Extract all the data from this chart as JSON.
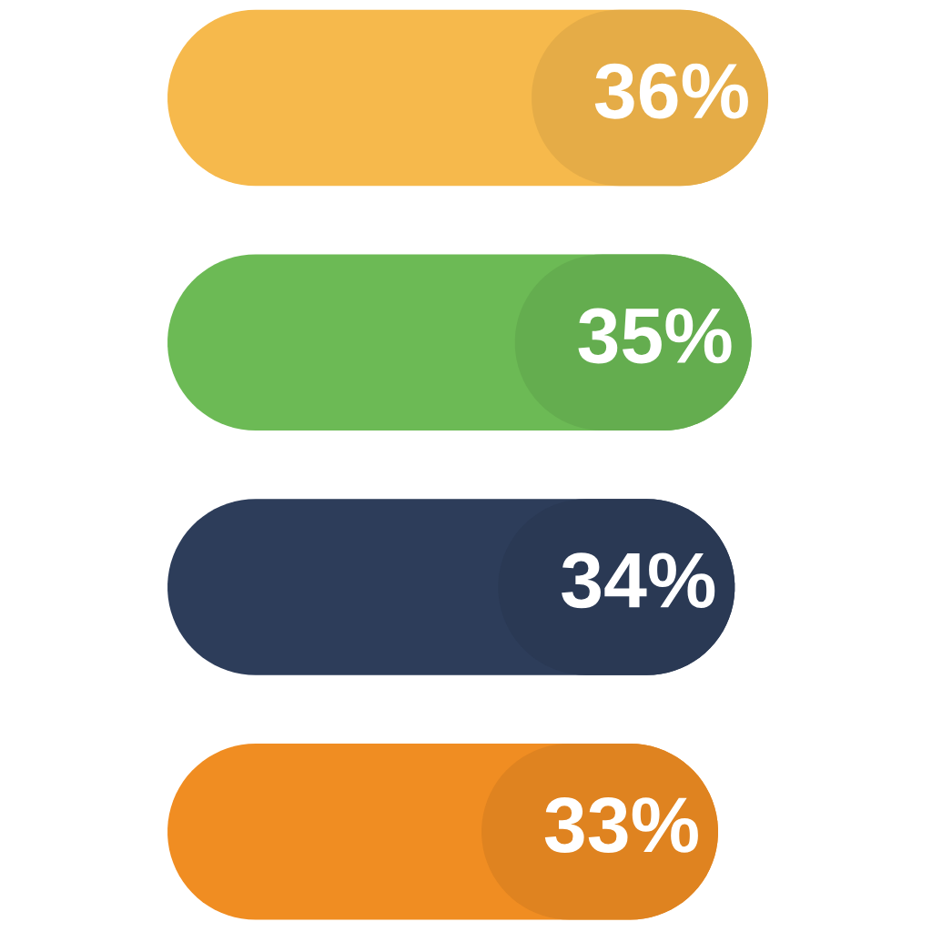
{
  "chart_data": {
    "type": "bar",
    "orientation": "horizontal",
    "categories": [
      null,
      null,
      null,
      null
    ],
    "values": [
      36,
      35,
      34,
      33
    ],
    "value_labels": [
      "36%",
      "35%",
      "34%",
      "33%"
    ],
    "colors": [
      "#f6b94c",
      "#6cba55",
      "#2d3d5a",
      "#f08d22"
    ]
  }
}
